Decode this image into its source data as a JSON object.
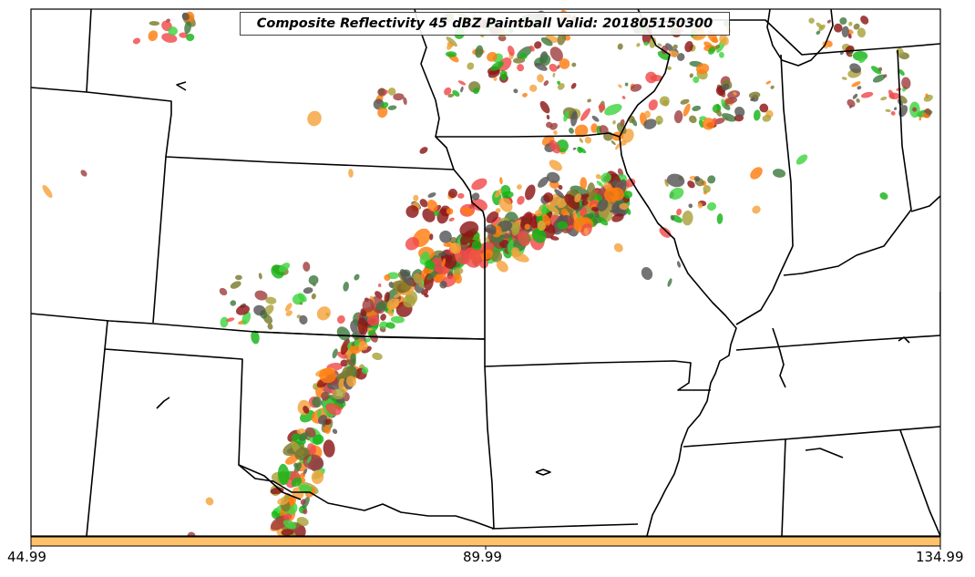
{
  "map": {
    "title": "Composite Reflectivity 45 dBZ Paintball Valid: 201805150300"
  },
  "colorbar": {
    "color": "#ffc26b",
    "ticks": [
      "44.99",
      "89.99",
      "134.99"
    ]
  },
  "palette": {
    "red": "#f04a4a",
    "dark_red": "#8c1616",
    "brown": "#a0403f",
    "orange": "#ff7d0f",
    "light_orange": "#f5a23c",
    "olive": "#a9a23c",
    "dark_olive": "#7a7a2e",
    "green": "#3fd43f",
    "bright_green": "#16b316",
    "dark_green": "#3f7a3f",
    "gray": "#555555"
  }
}
